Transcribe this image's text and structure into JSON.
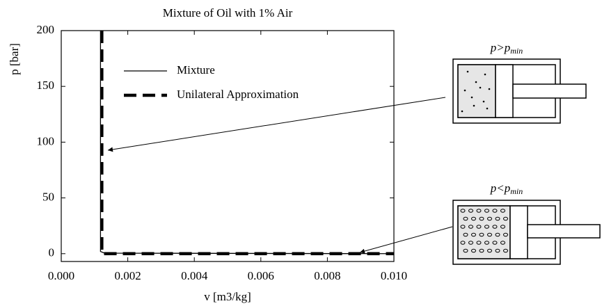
{
  "chart_data": {
    "type": "line",
    "title": "Mixture of Oil with 1% Air",
    "xlabel": "v [m3/kg]",
    "ylabel": "p [bar]",
    "xlim": [
      0,
      0.01
    ],
    "ylim": [
      -7,
      200
    ],
    "xticks": [
      {
        "value": 0,
        "label": "0.000"
      },
      {
        "value": 0.002,
        "label": "0.002"
      },
      {
        "value": 0.004,
        "label": "0.004"
      },
      {
        "value": 0.006,
        "label": "0.006"
      },
      {
        "value": 0.008,
        "label": "0.008"
      },
      {
        "value": 0.01,
        "label": "0.010"
      }
    ],
    "yticks": [
      0,
      50,
      100,
      150,
      200
    ],
    "legend_loc": "upper center",
    "series": [
      {
        "name": "Mixture",
        "color": "#000000",
        "style": "solid",
        "x": [
          0.00118,
          0.00118,
          0.0013,
          0.01
        ],
        "y": [
          200,
          2,
          0.5,
          0
        ]
      },
      {
        "name": "Unilateral Approximation",
        "color": "#000000",
        "style": "dashed",
        "x": [
          0.00122,
          0.00122,
          0.01
        ],
        "y": [
          200,
          0,
          0
        ]
      }
    ]
  },
  "diagrams": [
    {
      "label": "p>p",
      "sub": "min"
    },
    {
      "label": "p<p",
      "sub": "min"
    }
  ]
}
